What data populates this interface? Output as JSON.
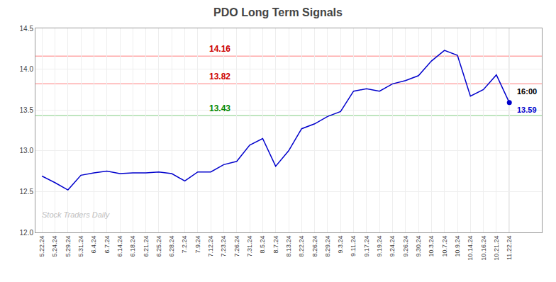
{
  "chart_data": {
    "type": "line",
    "title": "PDO Long Term Signals",
    "watermark": "Stock Traders Daily",
    "categories": [
      "5.22.24",
      "5.24.24",
      "5.29.24",
      "5.31.24",
      "6.4.24",
      "6.7.24",
      "6.14.24",
      "6.18.24",
      "6.21.24",
      "6.25.24",
      "6.28.24",
      "7.2.24",
      "7.9.24",
      "7.12.24",
      "7.23.24",
      "7.26.24",
      "7.31.24",
      "8.5.24",
      "8.7.24",
      "8.13.24",
      "8.22.24",
      "8.26.24",
      "8.29.24",
      "9.3.24",
      "9.11.24",
      "9.17.24",
      "9.19.24",
      "9.24.24",
      "9.26.24",
      "9.30.24",
      "10.3.24",
      "10.7.24",
      "10.9.24",
      "10.14.24",
      "10.16.24",
      "10.21.24",
      "11.22.24"
    ],
    "values": [
      12.69,
      12.61,
      12.52,
      12.7,
      12.73,
      12.75,
      12.72,
      12.73,
      12.73,
      12.74,
      12.72,
      12.63,
      12.74,
      12.74,
      12.83,
      12.87,
      13.07,
      13.15,
      12.81,
      13.0,
      13.27,
      13.33,
      13.42,
      13.48,
      13.73,
      13.76,
      13.73,
      13.82,
      13.86,
      13.92,
      14.1,
      14.23,
      14.17,
      13.67,
      13.75,
      13.93,
      13.59
    ],
    "color": "#0000cc",
    "hlines": [
      {
        "y": 14.16,
        "color": "#ffaaaa",
        "label": "14.16",
        "label_color": "#cc0000"
      },
      {
        "y": 13.82,
        "color": "#ffaaaa",
        "label": "13.82",
        "label_color": "#cc0000"
      },
      {
        "y": 13.43,
        "color": "#aaddaa",
        "label": "13.43",
        "label_color": "#008800"
      }
    ],
    "annotations": [
      "16:00",
      "13.59"
    ],
    "ylim": [
      12.0,
      14.5
    ],
    "yticks": [
      {
        "value": 12.0,
        "label": "12.0"
      },
      12.5,
      {
        "value": 13.0,
        "label": "13.0"
      },
      13.5,
      {
        "value": 14.0,
        "label": "14.0"
      },
      14.5
    ],
    "grid": true
  }
}
